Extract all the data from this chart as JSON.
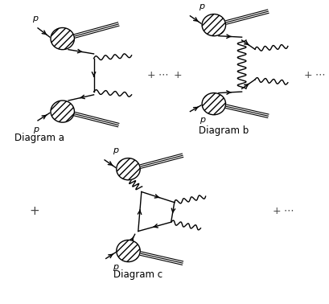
{
  "background_color": "#ffffff",
  "p_label": "p",
  "labels": {
    "diagram_a": "Diagram a",
    "diagram_b": "Diagram b",
    "diagram_c": "Diagram c"
  }
}
